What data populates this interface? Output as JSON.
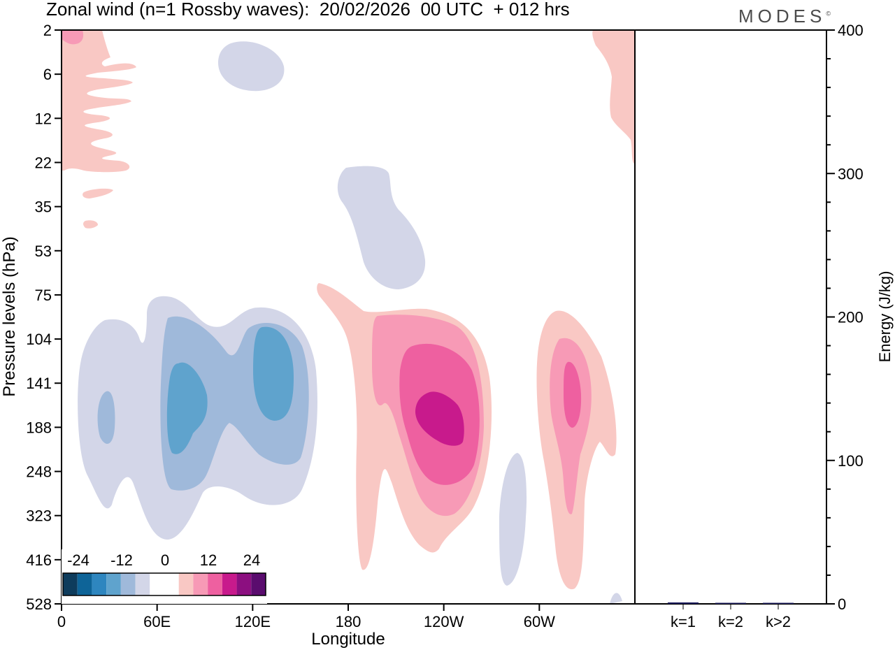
{
  "title": "Zonal wind (n=1 Rossby waves):  20/02/2026  00 UTC  + 012 hrs",
  "logo": "MODES",
  "logo_mark": "©",
  "colors": {
    "neg": [
      "#0e3c5c",
      "#0e6498",
      "#2e86bf",
      "#5fa3cd",
      "#9fb9da",
      "#d3d6e8"
    ],
    "zero": "#ffffff",
    "pos": [
      "#f9c8c4",
      "#f79ab6",
      "#ee60a0",
      "#c81a8c",
      "#8c0f80",
      "#5a0c6e"
    ]
  },
  "chart_data": [
    {
      "type": "contour",
      "title": "Zonal wind (n=1 Rossby waves)",
      "xlabel": "Longitude",
      "ylabel": "Pressure levels (hPa)",
      "x_ticks": [
        "0",
        "60E",
        "120E",
        "180",
        "120W",
        "60W"
      ],
      "x_tick_values": [
        0,
        60,
        120,
        180,
        240,
        300
      ],
      "xlim": [
        0,
        360
      ],
      "y_ticks": [
        "2",
        "6",
        "12",
        "22",
        "35",
        "53",
        "75",
        "104",
        "141",
        "188",
        "248",
        "323",
        "416",
        "528"
      ],
      "colorbar": {
        "labels": [
          "-24",
          "-12",
          "0",
          "12",
          "24"
        ],
        "levels": [
          -24,
          -20,
          -16,
          -12,
          -8,
          -4,
          4,
          8,
          12,
          16,
          20,
          24
        ]
      },
      "features": [
        {
          "name": "easterly-anomaly-40E",
          "sign": "negative",
          "center_lon": 30,
          "center_hpa": 188,
          "min_value": -8
        },
        {
          "name": "easterly-anomaly-70E",
          "sign": "negative",
          "center_lon": 75,
          "center_hpa": 160,
          "min_value": -12
        },
        {
          "name": "easterly-anomaly-130E",
          "sign": "negative",
          "center_lon": 132,
          "center_hpa": 141,
          "min_value": -12
        },
        {
          "name": "westerly-anomaly-120W",
          "sign": "positive",
          "center_lon": 238,
          "center_hpa": 170,
          "max_value": 16
        },
        {
          "name": "westerly-anomaly-40W",
          "sign": "positive",
          "center_lon": 322,
          "center_hpa": 150,
          "max_value": 12
        }
      ]
    },
    {
      "type": "bar",
      "ylabel": "Energy (J/kg)",
      "ylim": [
        0,
        400
      ],
      "y_ticks": [
        "0",
        "100",
        "200",
        "300",
        "400"
      ],
      "categories": [
        "k=1",
        "k=2",
        "k>2"
      ],
      "values": [
        1,
        0.3,
        0.6
      ]
    }
  ]
}
